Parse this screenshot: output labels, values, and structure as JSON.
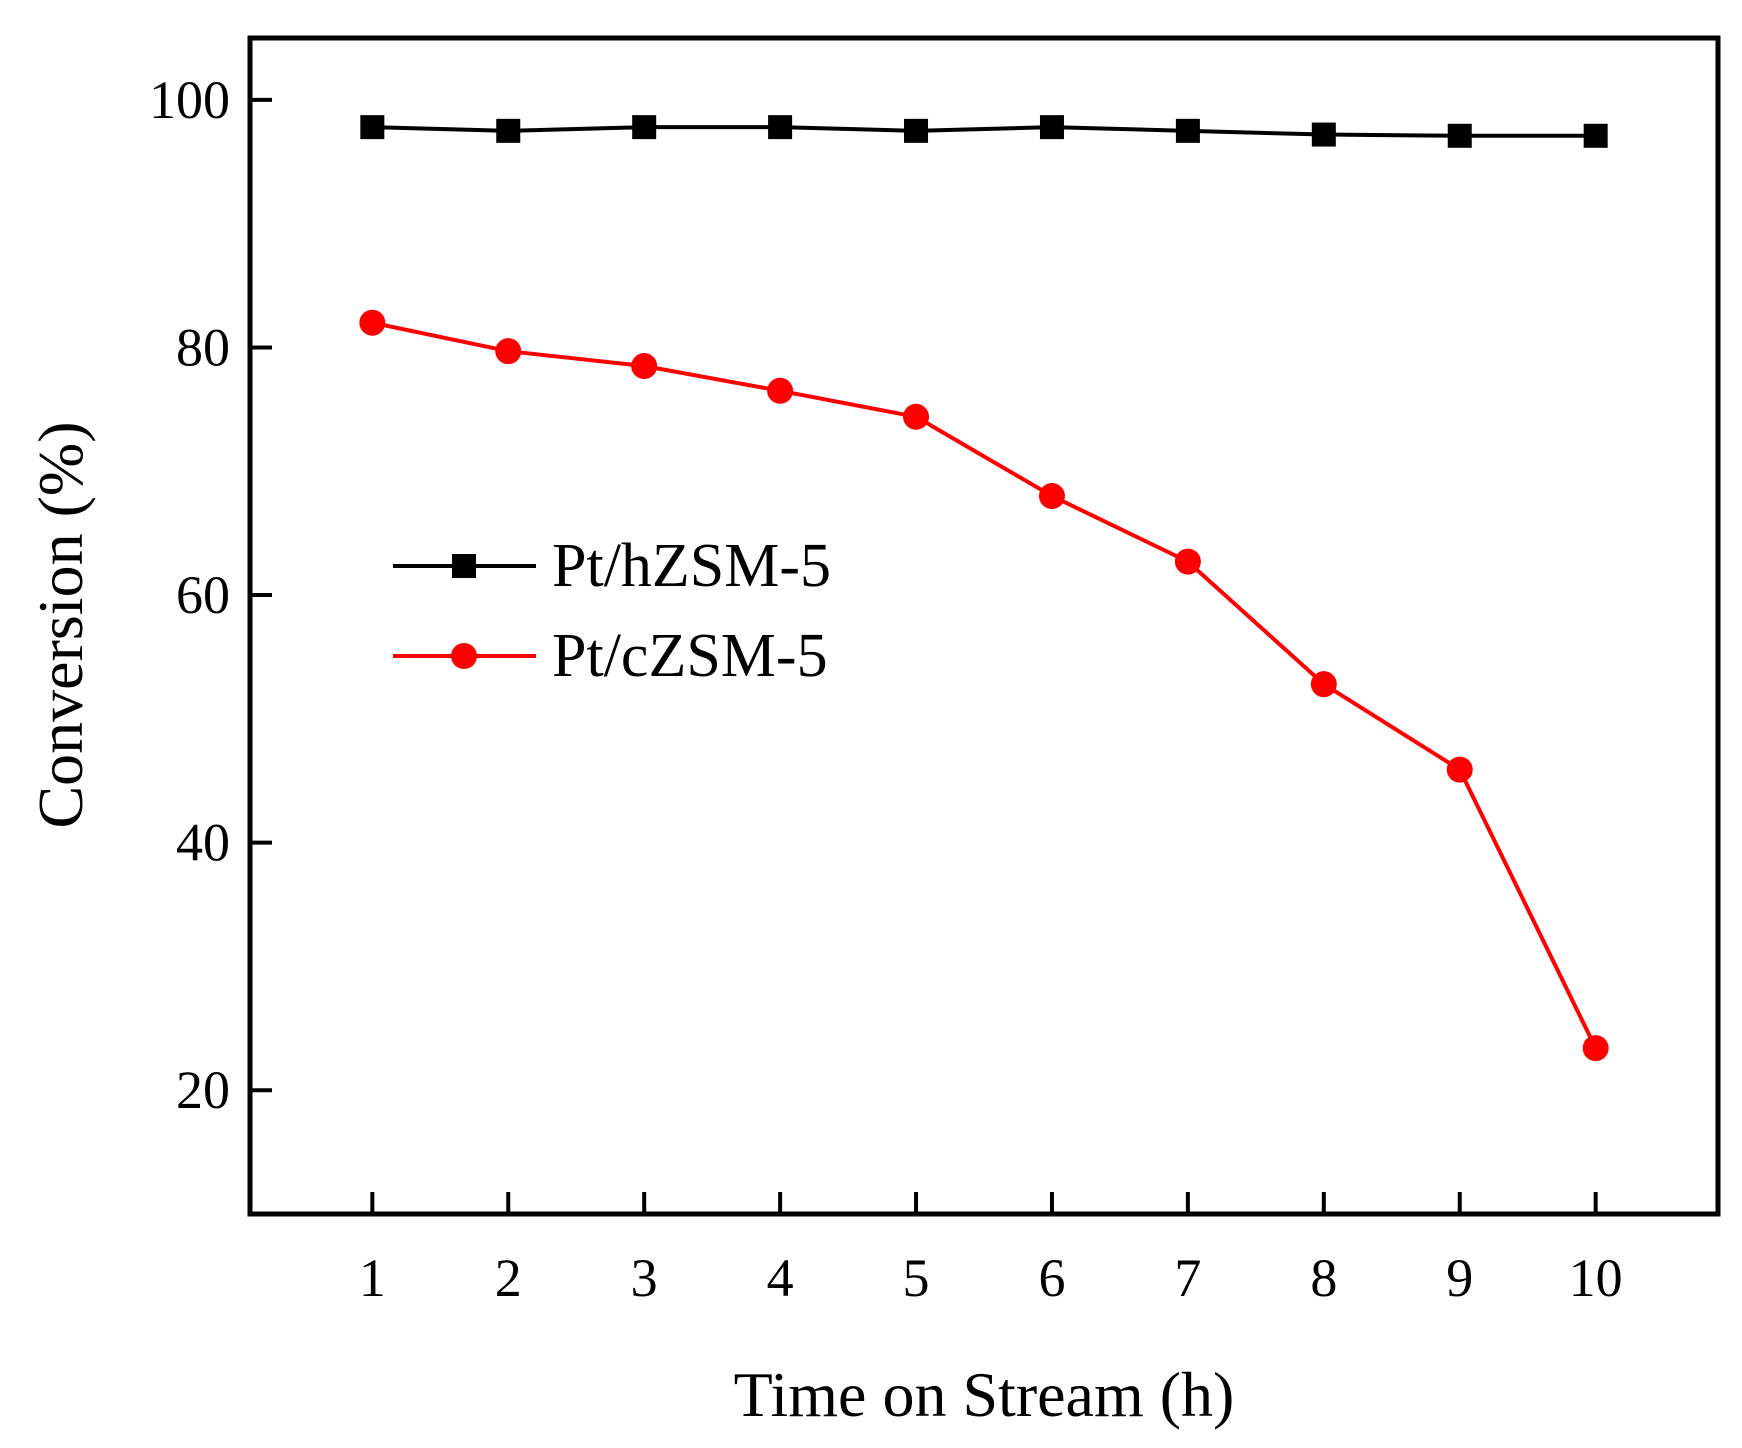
{
  "chart_data": {
    "type": "line",
    "xlabel": "Time on Stream (h)",
    "ylabel": "Conversion (%)",
    "x": [
      1,
      2,
      3,
      4,
      5,
      6,
      7,
      8,
      9,
      10
    ],
    "x_ticks": [
      "1",
      "2",
      "3",
      "4",
      "5",
      "6",
      "7",
      "8",
      "9",
      "10"
    ],
    "y_ticks": [
      "20",
      "40",
      "60",
      "80",
      "100"
    ],
    "xlim": [
      0.1,
      10.9
    ],
    "ylim": [
      10,
      105
    ],
    "grid": false,
    "legend_position": "middle-left",
    "series": [
      {
        "name": "Pt/hZSM-5",
        "color": "#000000",
        "marker": "square",
        "values": [
          97.8,
          97.5,
          97.8,
          97.8,
          97.5,
          97.8,
          97.5,
          97.2,
          97.1,
          97.1
        ]
      },
      {
        "name": "Pt/cZSM-5",
        "color": "#ff0000",
        "marker": "circle",
        "values": [
          82.0,
          79.7,
          78.5,
          76.5,
          74.4,
          68.0,
          62.7,
          52.8,
          45.9,
          23.4
        ]
      }
    ]
  }
}
